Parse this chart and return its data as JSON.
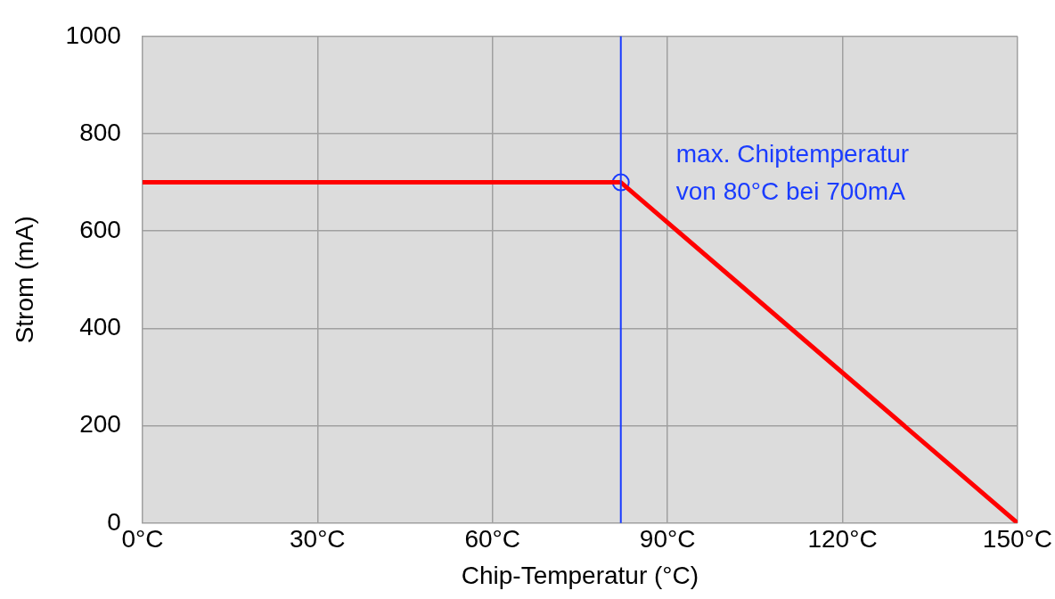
{
  "chart_data": {
    "type": "line",
    "xlabel": "Chip-Temperatur (°C)",
    "ylabel": "Strom (mA)",
    "xlim": [
      0,
      150
    ],
    "xticks": [
      {
        "value": 0,
        "label": "0°C"
      },
      {
        "value": 30,
        "label": "30°C"
      },
      {
        "value": 60,
        "label": "60°C"
      },
      {
        "value": 90,
        "label": "90°C"
      },
      {
        "value": 120,
        "label": "120°C"
      },
      {
        "value": 150,
        "label": "150°C"
      }
    ],
    "ylim": [
      0,
      1000
    ],
    "yticks": [
      0,
      200,
      400,
      600,
      800,
      1000
    ],
    "grid": true,
    "legend": false,
    "series": [
      {
        "color": "#ff0000",
        "x": [
          0,
          82,
          150
        ],
        "values": [
          700,
          700,
          0
        ],
        "marker": "none",
        "line_style": "solid"
      },
      {
        "type": "scatter",
        "color": "#1a3cff",
        "x": [
          82
        ],
        "values": [
          700
        ],
        "marker": "circle"
      }
    ],
    "ref_lines": [
      {
        "axis": "x",
        "value": 82,
        "color": "#1a3cff"
      }
    ],
    "annotations": [
      {
        "text": "max. Chiptemperatur\nvon 80°C bei 700mA",
        "x": 82,
        "y": 700
      }
    ]
  }
}
